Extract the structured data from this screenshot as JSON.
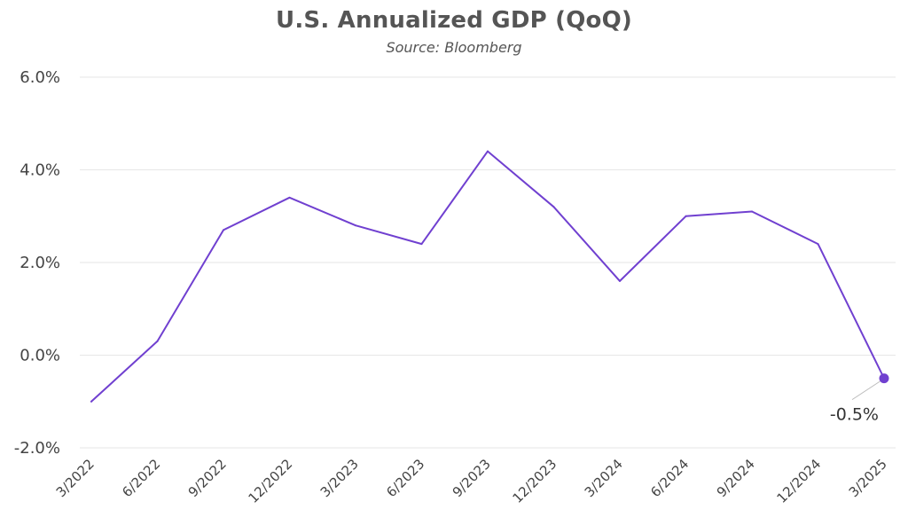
{
  "chart_data": {
    "type": "line",
    "title": "U.S. Annualized GDP (QoQ)",
    "subtitle": "Source: Bloomberg",
    "xlabel": "",
    "ylabel": "",
    "categories": [
      "3/2022",
      "6/2022",
      "9/2022",
      "12/2022",
      "3/2023",
      "6/2023",
      "9/2023",
      "12/2023",
      "3/2024",
      "6/2024",
      "9/2024",
      "12/2024",
      "3/2025"
    ],
    "series": [
      {
        "values": [
          -1.0,
          0.3,
          2.7,
          3.4,
          2.8,
          2.4,
          4.4,
          3.2,
          1.6,
          3.0,
          3.1,
          2.4,
          -0.5
        ]
      }
    ],
    "ylim": [
      -2.0,
      6.0
    ],
    "yticks": [
      6.0,
      4.0,
      2.0,
      0.0,
      -2.0
    ],
    "ytick_labels": [
      "6.0%",
      "4.0%",
      "2.0%",
      "0.0%",
      "-2.0%"
    ],
    "grid": true,
    "line_color": "#7040d0",
    "annotation": {
      "category": "3/2025",
      "value": -0.5,
      "label": "-0.5%"
    }
  }
}
